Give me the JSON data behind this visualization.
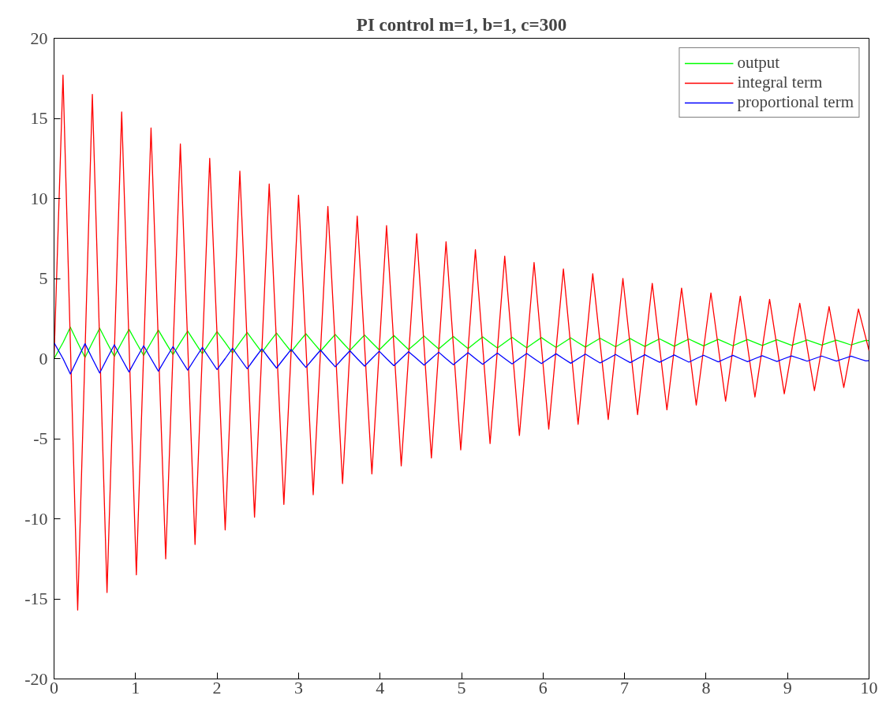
{
  "chart_data": {
    "type": "line",
    "title": "PI control m=1, b=1, c=300",
    "xlim": [
      0,
      10
    ],
    "xticks": [
      0,
      1,
      2,
      3,
      4,
      5,
      6,
      7,
      8,
      9,
      10
    ],
    "ylim": [
      -20,
      20
    ],
    "yticks": [
      -20,
      -15,
      -10,
      -5,
      0,
      5,
      10,
      15,
      20
    ],
    "grid": false,
    "legend": "top right",
    "line_style": "solid",
    "series": [
      {
        "name": "output",
        "color": "#00ff00",
        "x": [
          0,
          0.11,
          0.2,
          0.29,
          0.38,
          0.47,
          0.56,
          0.65,
          0.74,
          0.83,
          0.92,
          1.01,
          1.1,
          1.19,
          1.28,
          1.37,
          1.46,
          1.55,
          1.64,
          1.73,
          1.82,
          1.91,
          2.0,
          2.1,
          2.19,
          2.28,
          2.37,
          2.46,
          2.55,
          2.64,
          2.73,
          2.82,
          2.91,
          3.0,
          3.09,
          3.18,
          3.27,
          3.36,
          3.45,
          3.54,
          3.63,
          3.72,
          3.81,
          3.9,
          3.99,
          4.08,
          4.17,
          4.26,
          4.35,
          4.45,
          4.54,
          4.63,
          4.72,
          4.81,
          4.9,
          4.99,
          5.08,
          5.17,
          5.26,
          5.35,
          5.44,
          5.53,
          5.62,
          5.71,
          5.8,
          5.89,
          5.98,
          6.07,
          6.16,
          6.25,
          6.34,
          6.43,
          6.52,
          6.61,
          6.7,
          6.8,
          6.89,
          6.98,
          7.07,
          7.16,
          7.25,
          7.34,
          7.43,
          7.52,
          7.61,
          7.7,
          7.79,
          7.88,
          7.97,
          8.06,
          8.15,
          8.24,
          8.33,
          8.42,
          8.51,
          8.6,
          8.69,
          8.78,
          8.87,
          8.96,
          9.05,
          9.15,
          9.24,
          9.33,
          9.42,
          9.51,
          9.6,
          9.69,
          9.78,
          9.87,
          9.96,
          10
        ],
        "values": [
          0,
          1,
          1.96,
          1,
          0.07,
          1,
          1.9,
          1,
          0.14,
          1,
          1.83,
          1,
          0.2,
          1,
          1.78,
          1,
          0.25,
          1,
          1.72,
          1,
          0.3,
          1,
          1.68,
          1,
          0.35,
          1,
          1.63,
          1,
          0.39,
          1,
          1.59,
          1,
          0.43,
          1,
          1.55,
          1,
          0.47,
          1,
          1.51,
          1,
          0.51,
          1,
          1.47,
          1,
          0.54,
          1,
          1.44,
          1,
          0.57,
          1,
          1.41,
          1,
          0.6,
          1,
          1.38,
          1,
          0.63,
          1,
          1.36,
          1,
          0.66,
          1,
          1.33,
          1,
          0.68,
          1,
          1.31,
          1,
          0.7,
          1,
          1.29,
          1,
          0.72,
          1,
          1.27,
          1,
          0.74,
          1,
          1.25,
          1,
          0.76,
          1,
          1.23,
          1,
          0.77,
          1,
          1.22,
          1,
          0.79,
          1,
          1.2,
          1,
          0.8,
          1,
          1.19,
          1,
          0.82,
          1,
          1.18,
          1,
          0.83,
          1,
          1.16,
          1,
          0.84,
          1,
          1.15,
          1,
          0.85,
          1,
          1.14,
          1.13
        ]
      },
      {
        "name": "integral term",
        "color": "#ff0000",
        "x": [
          0,
          0.11,
          0.29,
          0.47,
          0.65,
          0.83,
          1.01,
          1.19,
          1.37,
          1.55,
          1.73,
          1.91,
          2.1,
          2.28,
          2.46,
          2.64,
          2.82,
          3.0,
          3.18,
          3.36,
          3.54,
          3.72,
          3.9,
          4.08,
          4.26,
          4.45,
          4.63,
          4.81,
          4.99,
          5.17,
          5.35,
          5.53,
          5.71,
          5.89,
          6.07,
          6.25,
          6.43,
          6.61,
          6.8,
          6.98,
          7.16,
          7.34,
          7.52,
          7.7,
          7.88,
          8.06,
          8.24,
          8.42,
          8.6,
          8.78,
          8.96,
          9.15,
          9.33,
          9.51,
          9.69,
          9.87,
          10
        ],
        "values": [
          0,
          17.7,
          -15.7,
          16.5,
          -14.6,
          15.4,
          -13.5,
          14.4,
          -12.5,
          13.4,
          -11.6,
          12.5,
          -10.7,
          11.7,
          -9.9,
          10.9,
          -9.1,
          10.2,
          -8.5,
          9.5,
          -7.8,
          8.9,
          -7.2,
          8.3,
          -6.7,
          7.8,
          -6.2,
          7.3,
          -5.7,
          6.8,
          -5.3,
          6.4,
          -4.8,
          6.0,
          -4.4,
          5.6,
          -4.1,
          5.3,
          -3.8,
          5.0,
          -3.5,
          4.7,
          -3.2,
          4.4,
          -2.9,
          4.1,
          -2.65,
          3.9,
          -2.4,
          3.7,
          -2.2,
          3.45,
          -2.0,
          3.25,
          -1.8,
          3.1,
          0.5
        ]
      },
      {
        "name": "proportional term",
        "color": "#0000ff",
        "x": [
          0,
          0.11,
          0.2,
          0.29,
          0.38,
          0.47,
          0.56,
          0.65,
          0.74,
          0.83,
          0.92,
          1.01,
          1.1,
          1.19,
          1.28,
          1.37,
          1.46,
          1.55,
          1.64,
          1.73,
          1.82,
          1.91,
          2.0,
          2.1,
          2.19,
          2.28,
          2.37,
          2.46,
          2.55,
          2.64,
          2.73,
          2.82,
          2.91,
          3.0,
          3.09,
          3.18,
          3.27,
          3.36,
          3.45,
          3.54,
          3.63,
          3.72,
          3.81,
          3.9,
          3.99,
          4.08,
          4.17,
          4.26,
          4.35,
          4.45,
          4.54,
          4.63,
          4.72,
          4.81,
          4.9,
          4.99,
          5.08,
          5.17,
          5.26,
          5.35,
          5.44,
          5.53,
          5.62,
          5.71,
          5.8,
          5.89,
          5.98,
          6.07,
          6.16,
          6.25,
          6.34,
          6.43,
          6.52,
          6.61,
          6.7,
          6.8,
          6.89,
          6.98,
          7.07,
          7.16,
          7.25,
          7.34,
          7.43,
          7.52,
          7.61,
          7.7,
          7.79,
          7.88,
          7.97,
          8.06,
          8.15,
          8.24,
          8.33,
          8.42,
          8.51,
          8.6,
          8.69,
          8.78,
          8.87,
          8.96,
          9.05,
          9.15,
          9.24,
          9.33,
          9.42,
          9.51,
          9.6,
          9.69,
          9.78,
          9.87,
          9.96,
          10
        ],
        "values": [
          1,
          0,
          -0.96,
          0,
          0.93,
          0,
          -0.9,
          0,
          0.86,
          0,
          -0.83,
          0,
          0.8,
          0,
          -0.78,
          0,
          0.75,
          0,
          -0.72,
          0,
          0.7,
          0,
          -0.68,
          0,
          0.65,
          0,
          -0.63,
          0,
          0.61,
          0,
          -0.59,
          0,
          0.57,
          0,
          -0.55,
          0,
          0.53,
          0,
          -0.51,
          0,
          0.49,
          0,
          -0.47,
          0,
          0.46,
          0,
          -0.44,
          0,
          0.43,
          0,
          -0.41,
          0,
          0.4,
          0,
          -0.38,
          0,
          0.37,
          0,
          -0.36,
          0,
          0.34,
          0,
          -0.33,
          0,
          0.32,
          0,
          -0.31,
          0,
          0.3,
          0,
          -0.29,
          0,
          0.28,
          0,
          -0.27,
          0,
          0.26,
          0,
          -0.25,
          0,
          0.24,
          0,
          -0.23,
          0,
          0.23,
          0,
          -0.22,
          0,
          0.21,
          0,
          -0.2,
          0,
          0.2,
          0,
          -0.19,
          0,
          0.18,
          0,
          -0.18,
          0,
          0.17,
          0,
          -0.16,
          0,
          0.16,
          0,
          -0.15,
          0,
          0.15,
          0,
          -0.14,
          -0.13
        ]
      }
    ]
  }
}
